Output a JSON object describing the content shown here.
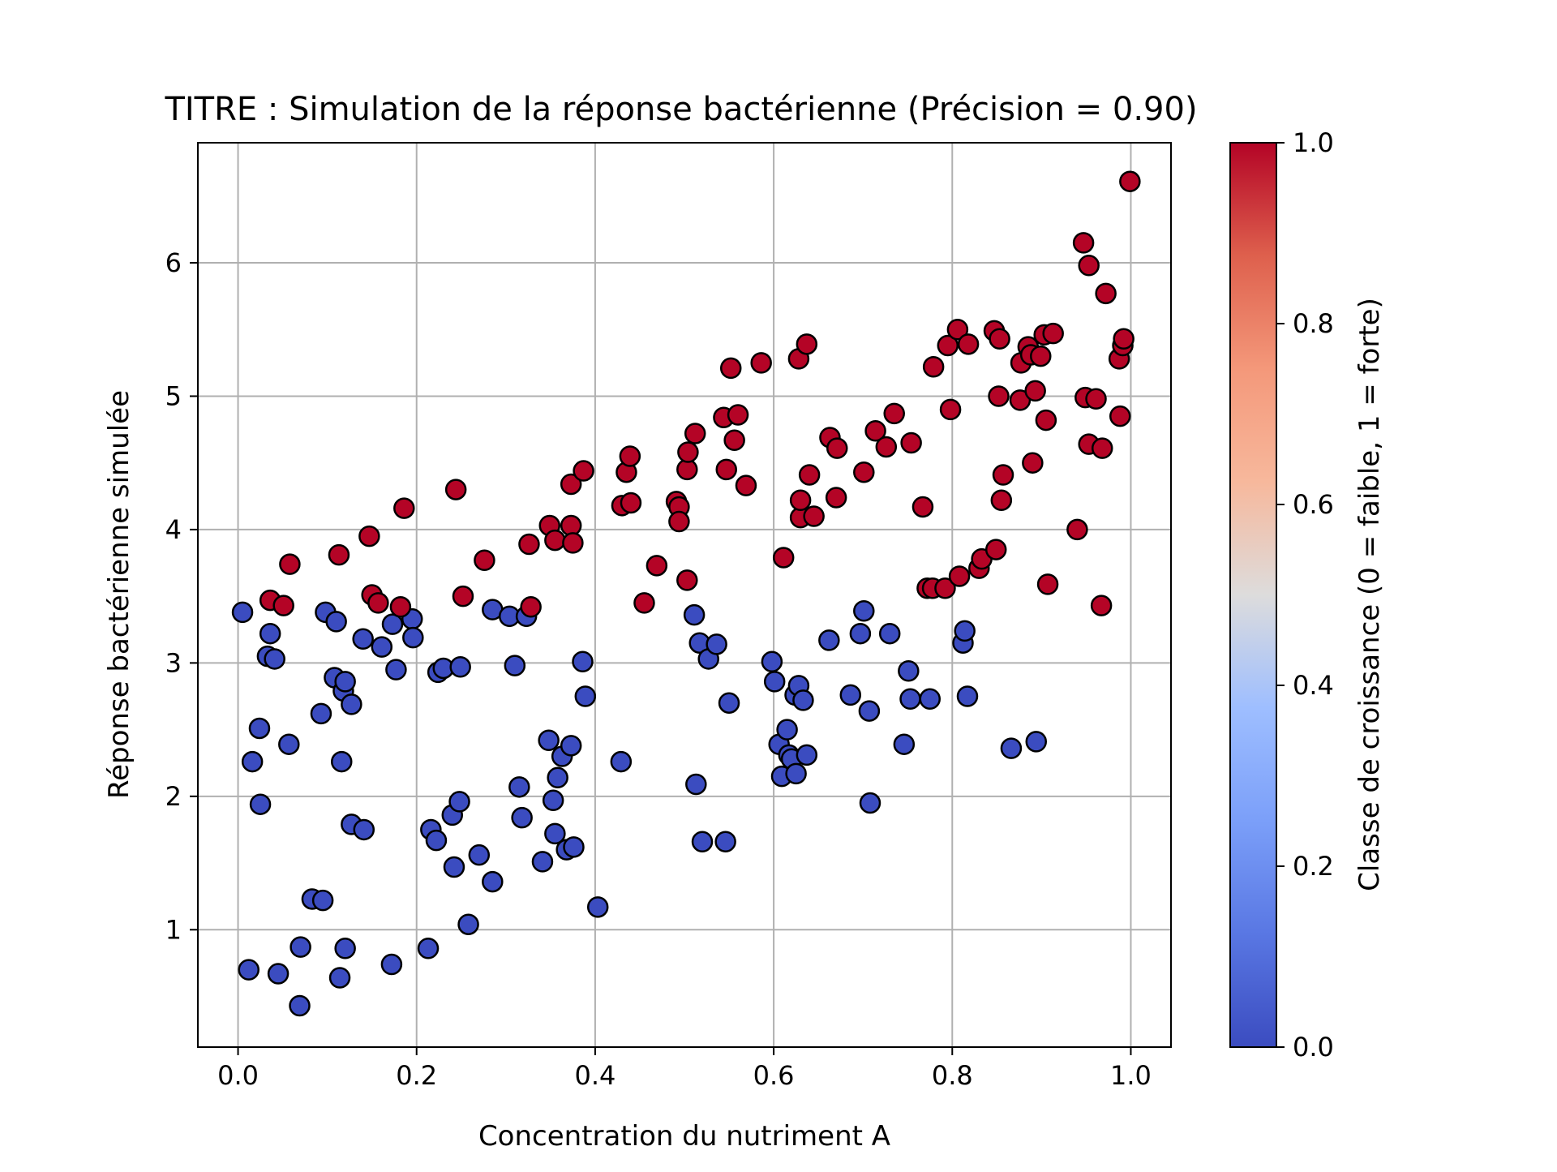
{
  "chart_data": {
    "type": "scatter",
    "title": "TITRE : Simulation de la réponse bactérienne (Précision = 0.90)",
    "xlabel": "Concentration du nutriment A",
    "ylabel": "Réponse bactérienne simulée",
    "xlim": [
      -0.045,
      1.045
    ],
    "ylim": [
      0.12,
      6.9
    ],
    "xticks": [
      0.0,
      0.2,
      0.4,
      0.6,
      0.8,
      1.0
    ],
    "xtick_labels": [
      "0.0",
      "0.2",
      "0.4",
      "0.6",
      "0.8",
      "1.0"
    ],
    "yticks": [
      1,
      2,
      3,
      4,
      5,
      6
    ],
    "ytick_labels": [
      "1",
      "2",
      "3",
      "4",
      "5",
      "6"
    ],
    "grid": true,
    "colorbar": {
      "label": "Classe de croissance (0 = faible, 1 = forte)",
      "colormap": "coolwarm",
      "range": [
        0.0,
        1.0
      ],
      "ticks": [
        0.0,
        0.2,
        0.4,
        0.6,
        0.8,
        1.0
      ],
      "tick_labels": [
        "0.0",
        "0.2",
        "0.4",
        "0.6",
        "0.8",
        "1.0"
      ]
    },
    "colors": {
      "class_0": "#3b4cc0",
      "class_1": "#b40426"
    },
    "series": [
      {
        "class": 0,
        "points": [
          [
            0.005,
            3.38
          ],
          [
            0.012,
            0.7
          ],
          [
            0.016,
            2.26
          ],
          [
            0.024,
            2.51
          ],
          [
            0.025,
            1.94
          ],
          [
            0.033,
            3.05
          ],
          [
            0.036,
            3.22
          ],
          [
            0.041,
            3.03
          ],
          [
            0.045,
            0.67
          ],
          [
            0.057,
            2.39
          ],
          [
            0.069,
            0.43
          ],
          [
            0.07,
            0.87
          ],
          [
            0.083,
            1.23
          ],
          [
            0.093,
            2.62
          ],
          [
            0.095,
            1.22
          ],
          [
            0.098,
            3.38
          ],
          [
            0.108,
            2.89
          ],
          [
            0.11,
            3.31
          ],
          [
            0.114,
            0.64
          ],
          [
            0.116,
            2.26
          ],
          [
            0.118,
            2.79
          ],
          [
            0.12,
            2.86
          ],
          [
            0.12,
            0.86
          ],
          [
            0.127,
            2.69
          ],
          [
            0.127,
            1.79
          ],
          [
            0.14,
            3.18
          ],
          [
            0.141,
            1.75
          ],
          [
            0.161,
            3.12
          ],
          [
            0.172,
            0.74
          ],
          [
            0.173,
            3.29
          ],
          [
            0.177,
            2.95
          ],
          [
            0.195,
            3.33
          ],
          [
            0.196,
            3.19
          ],
          [
            0.213,
            0.86
          ],
          [
            0.216,
            1.75
          ],
          [
            0.222,
            1.67
          ],
          [
            0.224,
            2.93
          ],
          [
            0.23,
            2.96
          ],
          [
            0.24,
            1.86
          ],
          [
            0.242,
            1.47
          ],
          [
            0.248,
            1.96
          ],
          [
            0.249,
            2.97
          ],
          [
            0.258,
            1.04
          ],
          [
            0.27,
            1.56
          ],
          [
            0.285,
            1.36
          ],
          [
            0.285,
            3.4
          ],
          [
            0.304,
            3.35
          ],
          [
            0.31,
            2.98
          ],
          [
            0.315,
            2.07
          ],
          [
            0.318,
            1.84
          ],
          [
            0.323,
            3.35
          ],
          [
            0.341,
            1.51
          ],
          [
            0.348,
            2.42
          ],
          [
            0.353,
            1.97
          ],
          [
            0.355,
            1.72
          ],
          [
            0.358,
            2.14
          ],
          [
            0.363,
            2.3
          ],
          [
            0.368,
            1.6
          ],
          [
            0.373,
            2.38
          ],
          [
            0.376,
            1.62
          ],
          [
            0.386,
            3.01
          ],
          [
            0.389,
            2.75
          ],
          [
            0.403,
            1.17
          ],
          [
            0.429,
            2.26
          ],
          [
            0.511,
            3.36
          ],
          [
            0.513,
            2.09
          ],
          [
            0.517,
            3.15
          ],
          [
            0.52,
            1.66
          ],
          [
            0.527,
            3.03
          ],
          [
            0.536,
            3.14
          ],
          [
            0.546,
            1.66
          ],
          [
            0.55,
            2.7
          ],
          [
            0.598,
            3.01
          ],
          [
            0.601,
            2.86
          ],
          [
            0.606,
            2.39
          ],
          [
            0.609,
            2.15
          ],
          [
            0.615,
            2.5
          ],
          [
            0.617,
            2.31
          ],
          [
            0.62,
            2.28
          ],
          [
            0.624,
            2.76
          ],
          [
            0.625,
            2.17
          ],
          [
            0.628,
            2.83
          ],
          [
            0.633,
            2.72
          ],
          [
            0.637,
            2.31
          ],
          [
            0.662,
            3.17
          ],
          [
            0.686,
            2.76
          ],
          [
            0.697,
            3.22
          ],
          [
            0.701,
            3.39
          ],
          [
            0.707,
            2.64
          ],
          [
            0.708,
            1.95
          ],
          [
            0.73,
            3.22
          ],
          [
            0.746,
            2.39
          ],
          [
            0.751,
            2.94
          ],
          [
            0.753,
            2.73
          ],
          [
            0.775,
            2.73
          ],
          [
            0.812,
            3.15
          ],
          [
            0.814,
            3.24
          ],
          [
            0.817,
            2.75
          ],
          [
            0.866,
            2.36
          ],
          [
            0.894,
            2.41
          ]
        ]
      },
      {
        "class": 1,
        "points": [
          [
            0.036,
            3.47
          ],
          [
            0.051,
            3.43
          ],
          [
            0.058,
            3.74
          ],
          [
            0.113,
            3.81
          ],
          [
            0.147,
            3.95
          ],
          [
            0.15,
            3.51
          ],
          [
            0.157,
            3.45
          ],
          [
            0.182,
            3.42
          ],
          [
            0.186,
            4.16
          ],
          [
            0.244,
            4.3
          ],
          [
            0.252,
            3.5
          ],
          [
            0.276,
            3.77
          ],
          [
            0.326,
            3.89
          ],
          [
            0.328,
            3.42
          ],
          [
            0.349,
            4.03
          ],
          [
            0.355,
            3.92
          ],
          [
            0.373,
            4.03
          ],
          [
            0.373,
            4.34
          ],
          [
            0.375,
            3.9
          ],
          [
            0.387,
            4.44
          ],
          [
            0.43,
            4.18
          ],
          [
            0.435,
            4.43
          ],
          [
            0.439,
            4.55
          ],
          [
            0.44,
            4.2
          ],
          [
            0.455,
            3.45
          ],
          [
            0.469,
            3.73
          ],
          [
            0.491,
            4.21
          ],
          [
            0.494,
            4.17
          ],
          [
            0.494,
            4.06
          ],
          [
            0.503,
            3.62
          ],
          [
            0.503,
            4.45
          ],
          [
            0.504,
            4.58
          ],
          [
            0.512,
            4.72
          ],
          [
            0.544,
            4.84
          ],
          [
            0.547,
            4.45
          ],
          [
            0.552,
            5.21
          ],
          [
            0.556,
            4.67
          ],
          [
            0.56,
            4.86
          ],
          [
            0.569,
            4.33
          ],
          [
            0.586,
            5.25
          ],
          [
            0.611,
            3.79
          ],
          [
            0.628,
            5.28
          ],
          [
            0.63,
            4.09
          ],
          [
            0.63,
            4.22
          ],
          [
            0.637,
            5.39
          ],
          [
            0.64,
            4.41
          ],
          [
            0.645,
            4.1
          ],
          [
            0.663,
            4.69
          ],
          [
            0.67,
            4.24
          ],
          [
            0.671,
            4.61
          ],
          [
            0.701,
            4.43
          ],
          [
            0.714,
            4.74
          ],
          [
            0.726,
            4.62
          ],
          [
            0.735,
            4.87
          ],
          [
            0.754,
            4.65
          ],
          [
            0.767,
            4.17
          ],
          [
            0.772,
            3.56
          ],
          [
            0.778,
            3.56
          ],
          [
            0.779,
            5.22
          ],
          [
            0.792,
            3.56
          ],
          [
            0.795,
            5.38
          ],
          [
            0.798,
            4.9
          ],
          [
            0.806,
            5.5
          ],
          [
            0.808,
            3.65
          ],
          [
            0.818,
            5.39
          ],
          [
            0.83,
            3.71
          ],
          [
            0.833,
            3.78
          ],
          [
            0.847,
            5.49
          ],
          [
            0.849,
            3.85
          ],
          [
            0.852,
            5.0
          ],
          [
            0.853,
            5.43
          ],
          [
            0.855,
            4.22
          ],
          [
            0.857,
            4.41
          ],
          [
            0.876,
            4.97
          ],
          [
            0.877,
            5.25
          ],
          [
            0.885,
            5.37
          ],
          [
            0.888,
            5.31
          ],
          [
            0.89,
            4.5
          ],
          [
            0.893,
            5.04
          ],
          [
            0.899,
            5.3
          ],
          [
            0.903,
            5.46
          ],
          [
            0.905,
            4.82
          ],
          [
            0.907,
            3.59
          ],
          [
            0.913,
            5.47
          ],
          [
            0.94,
            4.0
          ],
          [
            0.947,
            6.15
          ],
          [
            0.949,
            4.99
          ],
          [
            0.953,
            5.98
          ],
          [
            0.953,
            4.64
          ],
          [
            0.961,
            4.98
          ],
          [
            0.967,
            3.43
          ],
          [
            0.968,
            4.61
          ],
          [
            0.972,
            5.77
          ],
          [
            0.987,
            5.28
          ],
          [
            0.988,
            4.85
          ],
          [
            0.991,
            5.38
          ],
          [
            0.992,
            5.43
          ],
          [
            0.999,
            6.61
          ]
        ]
      }
    ]
  }
}
